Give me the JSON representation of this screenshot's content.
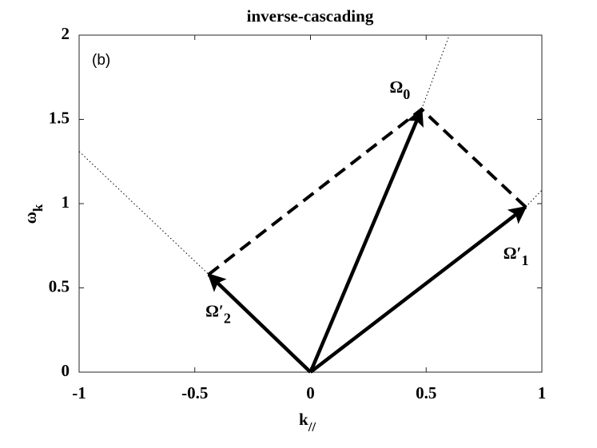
{
  "chart_data": {
    "type": "vector",
    "title": "inverse-cascading",
    "panel_label": "(b)",
    "x_label": {
      "symbol": "k",
      "subscript": "//"
    },
    "y_label": {
      "symbol": "ω",
      "subscript": "k"
    },
    "xlim": [
      -1,
      1
    ],
    "xticks": [
      -1,
      -0.5,
      0,
      0.5,
      1
    ],
    "ylim": [
      0,
      2
    ],
    "yticks": [
      0,
      0.5,
      1,
      1.5,
      2
    ],
    "origin": {
      "x": 0,
      "y": 0
    },
    "vectors": [
      {
        "symbol": "Ω",
        "subscript": "0",
        "x": 0.48,
        "y": 1.56
      },
      {
        "symbol": "Ω′",
        "subscript": "1",
        "x": 0.93,
        "y": 0.98
      },
      {
        "symbol": "Ω′",
        "subscript": "2",
        "x": -0.44,
        "y": 0.58
      }
    ],
    "dashed": {
      "x": [
        -0.44,
        0.48,
        0.93
      ],
      "y": [
        0.58,
        1.56,
        0.98
      ]
    },
    "dotted": {
      "x": [
        -1,
        -0.44,
        null,
        0.48,
        0.6,
        null,
        0.93,
        1
      ],
      "y": [
        1.31,
        0.58,
        null,
        1.56,
        2,
        null,
        0.98,
        1.08
      ]
    },
    "color": "#000000"
  }
}
